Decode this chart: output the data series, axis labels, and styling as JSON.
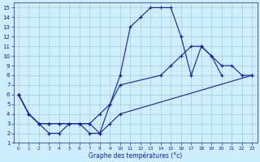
{
  "xlabel": "Graphe des températures (°c)",
  "background_color": "#cceeff",
  "grid_color": "#aacccc",
  "line_color": "#1a1aaa",
  "xlim": [
    -0.5,
    23.5
  ],
  "ylim": [
    1,
    15.5
  ],
  "xticks": [
    0,
    1,
    2,
    3,
    4,
    5,
    6,
    7,
    8,
    9,
    10,
    11,
    12,
    13,
    14,
    15,
    16,
    17,
    18,
    19,
    20,
    21,
    22,
    23
  ],
  "yticks": [
    1,
    2,
    3,
    4,
    5,
    6,
    7,
    8,
    9,
    10,
    11,
    12,
    13,
    14,
    15
  ],
  "series1_x": [
    0,
    1,
    2,
    3,
    4,
    5,
    6,
    7,
    8,
    9,
    10,
    11,
    12,
    13,
    14,
    15,
    16,
    17,
    18,
    19,
    20
  ],
  "series1_y": [
    6,
    4,
    3,
    2,
    2,
    3,
    3,
    3,
    2,
    5,
    8,
    13,
    14,
    15,
    15,
    15,
    12,
    8,
    11,
    10,
    8
  ],
  "series2_x": [
    0,
    1,
    2,
    3,
    4,
    5,
    6,
    7,
    8,
    9,
    10,
    14,
    15,
    16,
    17,
    18,
    19,
    20,
    21,
    22,
    23
  ],
  "series2_y": [
    6,
    4,
    3,
    3,
    3,
    3,
    3,
    3,
    4,
    5,
    7,
    8,
    9,
    10,
    11,
    11,
    10,
    9,
    9,
    8,
    8
  ],
  "series3_x": [
    0,
    1,
    2,
    3,
    4,
    5,
    6,
    7,
    8,
    9,
    10,
    23
  ],
  "series3_y": [
    6,
    4,
    3,
    3,
    3,
    3,
    3,
    2,
    2,
    3,
    4,
    8
  ]
}
